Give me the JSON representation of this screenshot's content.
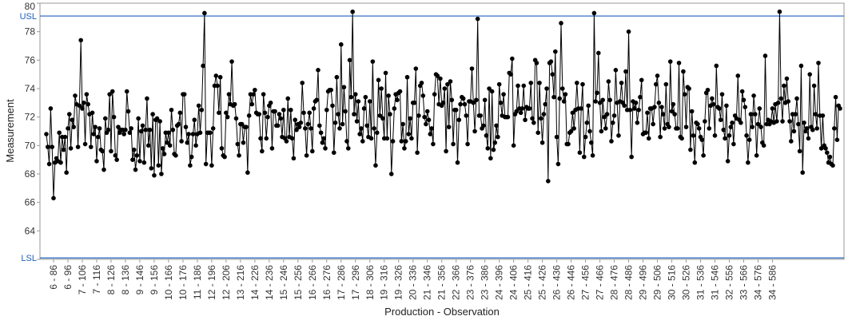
{
  "chart_data": {
    "type": "line",
    "title": "",
    "xlabel": "Production - Observation",
    "ylabel": "Measurement",
    "ylim": [
      62,
      80
    ],
    "yticks": [
      62,
      64,
      66,
      68,
      70,
      72,
      74,
      76,
      78,
      80
    ],
    "grid": false,
    "line_color": "#000000",
    "marker_color": "#000000",
    "limit_color": "#1f5fbf",
    "limits": [
      {
        "label": "USL",
        "value": 79.1
      },
      {
        "label": "LSL",
        "value": 62.1
      }
    ],
    "x_tick_labels": [
      "6 - 86",
      "6 - 96",
      "7 - 106",
      "7 - 116",
      "8 - 126",
      "8 - 136",
      "9 - 146",
      "9 - 156",
      "10 - 166",
      "10 - 176",
      "11 - 186",
      "12 - 196",
      "12 - 206",
      "13 - 216",
      "14 - 226",
      "14 - 236",
      "15 - 246",
      "15 - 256",
      "16 - 266",
      "16 - 276",
      "17 - 286",
      "17 - 296",
      "18 - 306",
      "19 - 316",
      "19 - 326",
      "20 - 336",
      "21 - 346",
      "21 - 356",
      "22 - 366",
      "23 - 376",
      "23 - 386",
      "24 - 396",
      "24 - 406",
      "25 - 416",
      "25 - 426",
      "26 - 436",
      "26 - 446",
      "27 - 456",
      "27 - 466",
      "28 - 476",
      "28 - 486",
      "29 - 496",
      "29 - 506",
      "30 - 516",
      "30 - 526",
      "31 - 536",
      "31 - 546",
      "32 - 556",
      "33 - 566",
      "34 - 576",
      "34 - 586"
    ],
    "observation_start": 81,
    "observation_step": 1,
    "series": [
      {
        "values": [
          70.8,
          69.9,
          68.7,
          72.6,
          69.9,
          66.3,
          68.8,
          69.1,
          68.9,
          70.9,
          68.8,
          70.6,
          69.7,
          70.6,
          68.1,
          71.2,
          72.2,
          69.8,
          71.8,
          71.3,
          73.5,
          72.9,
          69.9,
          72.8,
          77.4,
          72.6,
          73.0,
          70.1,
          73.6,
          72.9,
          72.2,
          69.9,
          72.3,
          70.8,
          71.3,
          68.9,
          70.6,
          71.2,
          69.7,
          69.6,
          68.3,
          71.9,
          70.9,
          71.1,
          73.6,
          69.6,
          73.8,
          72.0,
          69.3,
          69.0,
          71.3,
          70.9,
          71.1,
          71.1,
          70.8,
          71.1,
          73.8,
          72.4,
          70.9,
          71.2,
          69.0,
          69.7,
          68.3,
          69.3,
          71.9,
          68.9,
          71.0,
          71.4,
          68.8,
          71.1,
          73.3,
          70.0,
          71.1,
          68.4,
          72.2,
          67.9,
          71.8,
          71.9,
          68.6,
          71.7,
          68.0,
          69.8,
          69.4,
          70.9,
          70.2,
          70.9,
          70.0,
          72.5,
          71.1,
          69.4,
          69.3,
          71.4,
          71.5,
          72.3,
          70.3,
          73.6,
          73.6,
          71.3,
          70.2,
          70.8,
          68.6,
          69.2,
          70.8,
          71.8,
          70.0,
          70.8,
          72.8,
          70.9,
          72.5,
          75.6,
          79.3,
          68.7,
          70.9,
          70.9,
          70.9,
          68.6,
          71.2,
          74.2,
          74.9,
          74.2,
          72.3,
          74.8,
          69.8,
          69.3,
          69.2,
          72.3,
          72.0,
          73.6,
          72.9,
          75.9,
          72.8,
          72.9,
          71.9,
          70.1,
          69.3,
          71.5,
          71.5,
          70.2,
          71.3,
          71.3,
          68.1,
          72.1,
          73.6,
          72.9,
          73.6,
          73.9,
          72.3,
          72.2,
          72.2,
          70.5,
          69.6,
          73.6,
          72.3,
          70.5,
          72.0,
          72.8,
          73.0,
          69.8,
          72.4,
          72.4,
          71.4,
          71.4,
          72.2,
          71.9,
          70.6,
          72.5,
          70.5,
          70.3,
          73.3,
          70.6,
          72.5,
          70.5,
          69.1,
          71.8,
          71.1,
          71.5,
          71.3,
          71.6,
          74.4,
          72.3,
          71.2,
          69.3,
          71.5,
          72.3,
          71.2,
          69.6,
          72.6,
          73.1,
          73.2,
          75.3,
          71.4,
          70.9,
          70.2,
          70.5,
          69.8,
          72.5,
          73.8,
          73.9,
          73.9,
          72.8,
          69.5,
          71.6,
          74.8,
          72.2,
          71.2,
          77.1,
          71.5,
          74.1,
          72.4,
          70.3,
          69.8,
          76.0,
          73.4,
          79.4,
          72.2,
          73.6,
          71.7,
          73.1,
          70.8,
          71.2,
          70.3,
          72.6,
          73.4,
          71.4,
          70.6,
          73.1,
          70.5,
          75.9,
          71.2,
          68.6,
          70.9,
          74.6,
          72.1,
          74.0,
          71.9,
          70.5,
          75.1,
          70.5,
          73.5,
          72.2,
          68.0,
          70.3,
          72.6,
          73.6,
          73.2,
          73.7,
          73.8,
          70.3,
          71.5,
          69.8,
          70.3,
          74.8,
          70.8,
          71.9,
          70.5,
          73.0,
          73.0,
          75.4,
          69.5,
          72.1,
          74.2,
          74.4,
          73.5,
          72.0,
          71.5,
          72.4,
          71.8,
          70.8,
          71.2,
          70.1,
          73.6,
          75.0,
          74.9,
          72.9,
          74.7,
          72.8,
          73.0,
          74.0,
          69.6,
          74.3,
          71.3,
          74.5,
          73.2,
          70.1,
          72.5,
          72.5,
          68.8,
          71.8,
          72.9,
          73.4,
          73.3,
          72.9,
          72.1,
          70.1,
          73.1,
          73.1,
          75.4,
          73.0,
          71.0,
          73.2,
          78.9,
          72.1,
          72.1,
          71.2,
          71.4,
          73.2,
          70.7,
          69.8,
          74.0,
          69.1,
          73.8,
          69.7,
          70.2,
          71.4,
          70.6,
          74.3,
          73.0,
          72.1,
          73.6,
          72.0,
          72.0,
          72.0,
          75.1,
          75.0,
          76.1,
          70.0,
          72.2,
          72.4,
          74.2,
          72.6,
          72.3,
          72.6,
          74.2,
          71.8,
          72.7,
          72.6,
          72.6,
          74.4,
          71.9,
          71.6,
          76.0,
          75.8,
          70.9,
          74.4,
          71.9,
          70.2,
          72.2,
          72.9,
          74.0,
          67.5,
          75.8,
          75.9,
          75.0,
          73.4,
          76.6,
          70.6,
          68.7,
          73.3,
          78.6,
          74.0,
          73.1,
          73.6,
          70.1,
          70.1,
          70.9,
          71.0,
          72.3,
          71.2,
          72.5,
          74.4,
          72.6,
          69.5,
          72.6,
          74.3,
          69.2,
          70.6,
          71.6,
          72.8,
          71.0,
          70.2,
          69.3,
          79.3,
          73.1,
          73.7,
          76.5,
          73.0,
          71.0,
          73.2,
          72.0,
          71.2,
          72.2,
          74.5,
          73.2,
          70.3,
          71.6,
          72.1,
          75.3,
          73.0,
          70.7,
          73.1,
          74.4,
          73.0,
          72.8,
          75.2,
          72.5,
          78.0,
          72.5,
          69.2,
          73.1,
          72.6,
          73.0,
          71.6,
          72.5,
          73.4,
          74.6,
          70.8,
          70.9,
          70.9,
          72.3,
          70.5,
          72.6,
          72.6,
          71.5,
          72.7,
          74.3,
          74.9,
          73.0,
          70.6,
          72.7,
          72.2,
          71.2,
          74.3,
          71.5,
          71.3,
          75.9,
          72.4,
          72.9,
          72.2,
          71.2,
          71.2,
          75.8,
          70.6,
          70.5,
          75.2,
          73.6,
          71.3,
          74.1,
          74.0,
          69.7,
          72.4,
          70.7,
          68.8,
          71.6,
          71.5,
          71.2,
          70.6,
          70.4,
          69.3,
          71.7,
          73.7,
          73.9,
          71.2,
          72.8,
          73.3,
          72.9,
          70.7,
          75.6,
          72.7,
          72.6,
          71.8,
          73.6,
          71.1,
          70.5,
          72.8,
          68.9,
          70.7,
          71.3,
          71.6,
          70.1,
          72.1,
          71.9,
          74.9,
          71.8,
          71.6,
          73.8,
          73.2,
          72.7,
          70.7,
          68.8,
          70.4,
          72.2,
          71.3,
          73.5,
          72.2,
          69.3,
          71.5,
          72.6,
          71.3,
          70.2,
          70.0,
          76.3,
          71.5,
          71.8,
          71.5,
          71.7,
          72.6,
          71.6,
          72.9,
          71.7,
          73.0,
          79.4,
          73.3,
          71.7,
          74.2,
          73.0,
          74.7,
          73.1,
          71.7,
          70.3,
          72.2,
          71.0,
          72.2,
          73.3,
          71.5,
          69.6,
          75.6,
          68.1,
          71.6,
          71.0,
          71.2,
          70.5,
          75.0,
          71.3,
          71.1,
          74.2,
          72.2,
          71.2,
          75.8,
          72.1,
          69.8,
          72.1,
          70.0,
          69.8,
          69.5,
          68.8,
          69.2,
          68.7,
          68.6,
          71.2,
          73.4,
          70.4,
          72.8,
          72.6
        ]
      }
    ]
  }
}
